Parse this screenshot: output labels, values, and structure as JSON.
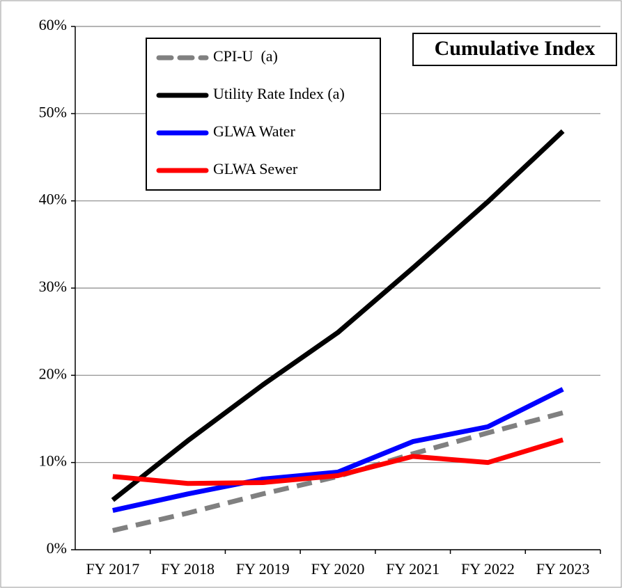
{
  "chart_data": {
    "type": "line",
    "title": "Cumulative Index",
    "categories": [
      "FY 2017",
      "FY 2018",
      "FY 2019",
      "FY 2020",
      "FY 2021",
      "FY 2022",
      "FY 2023"
    ],
    "series": [
      {
        "name": "CPI-U  (a)",
        "color": "#808080",
        "dashed": true,
        "values": [
          2.2,
          4.2,
          6.4,
          8.4,
          11.0,
          13.4,
          15.7
        ]
      },
      {
        "name": "Utility Rate Index (a)",
        "color": "#000000",
        "values": [
          5.7,
          12.5,
          18.9,
          24.9,
          32.3,
          39.9,
          48.0
        ]
      },
      {
        "name": "GLWA Water",
        "color": "#0000ff",
        "values": [
          4.5,
          6.4,
          8.1,
          8.9,
          12.4,
          14.1,
          18.4
        ]
      },
      {
        "name": "GLWA Sewer",
        "color": "#ff0000",
        "values": [
          8.4,
          7.6,
          7.7,
          8.5,
          10.7,
          10.0,
          12.6
        ]
      }
    ],
    "ylim": [
      0,
      60
    ],
    "yticks": [
      {
        "value": 0,
        "label": "0%"
      },
      {
        "value": 10,
        "label": "10%"
      },
      {
        "value": 20,
        "label": "20%"
      },
      {
        "value": 30,
        "label": "30%"
      },
      {
        "value": 40,
        "label": "40%"
      },
      {
        "value": 50,
        "label": "50%"
      },
      {
        "value": 60,
        "label": "60%"
      }
    ],
    "grid": true
  }
}
